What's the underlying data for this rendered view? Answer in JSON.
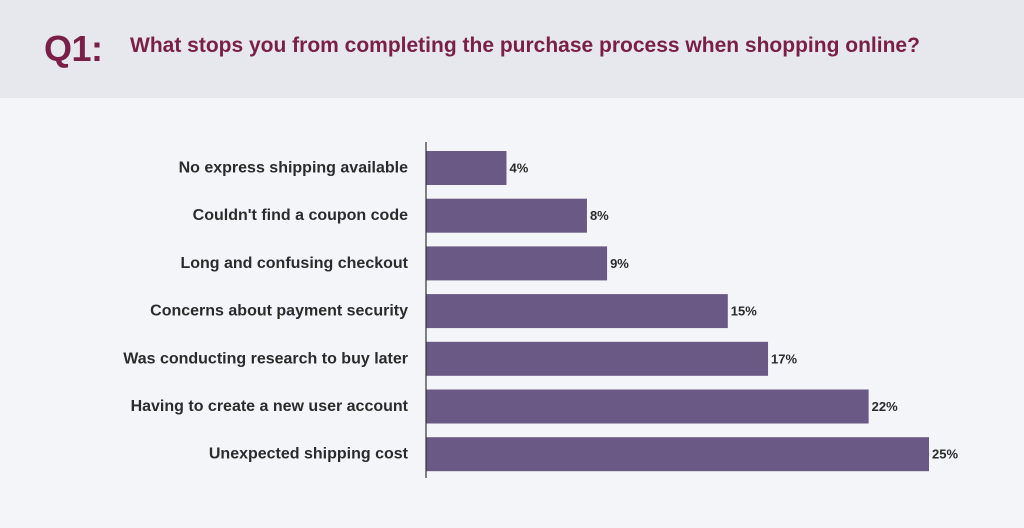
{
  "header": {
    "question_number": "Q1:",
    "question_text": "What stops you from completing the purchase process when shopping online?"
  },
  "colors": {
    "header_bg": "#e6e8ed",
    "accent": "#7a2048",
    "bar": "#6a5985",
    "axis": "#333333",
    "label": "#2b2b2b"
  },
  "chart_data": {
    "type": "bar",
    "orientation": "horizontal",
    "categories": [
      "No express shipping available",
      "Couldn't find a coupon code",
      "Long and confusing checkout",
      "Concerns about payment security",
      "Was conducting research to buy later",
      "Having to create a new user account",
      "Unexpected shipping cost"
    ],
    "values": [
      4,
      8,
      9,
      15,
      17,
      22,
      25
    ],
    "value_labels": [
      "4%",
      "8%",
      "9%",
      "15%",
      "17%",
      "22%",
      "25%"
    ],
    "xlim": [
      0,
      25
    ],
    "grid": false,
    "legend": "none"
  }
}
